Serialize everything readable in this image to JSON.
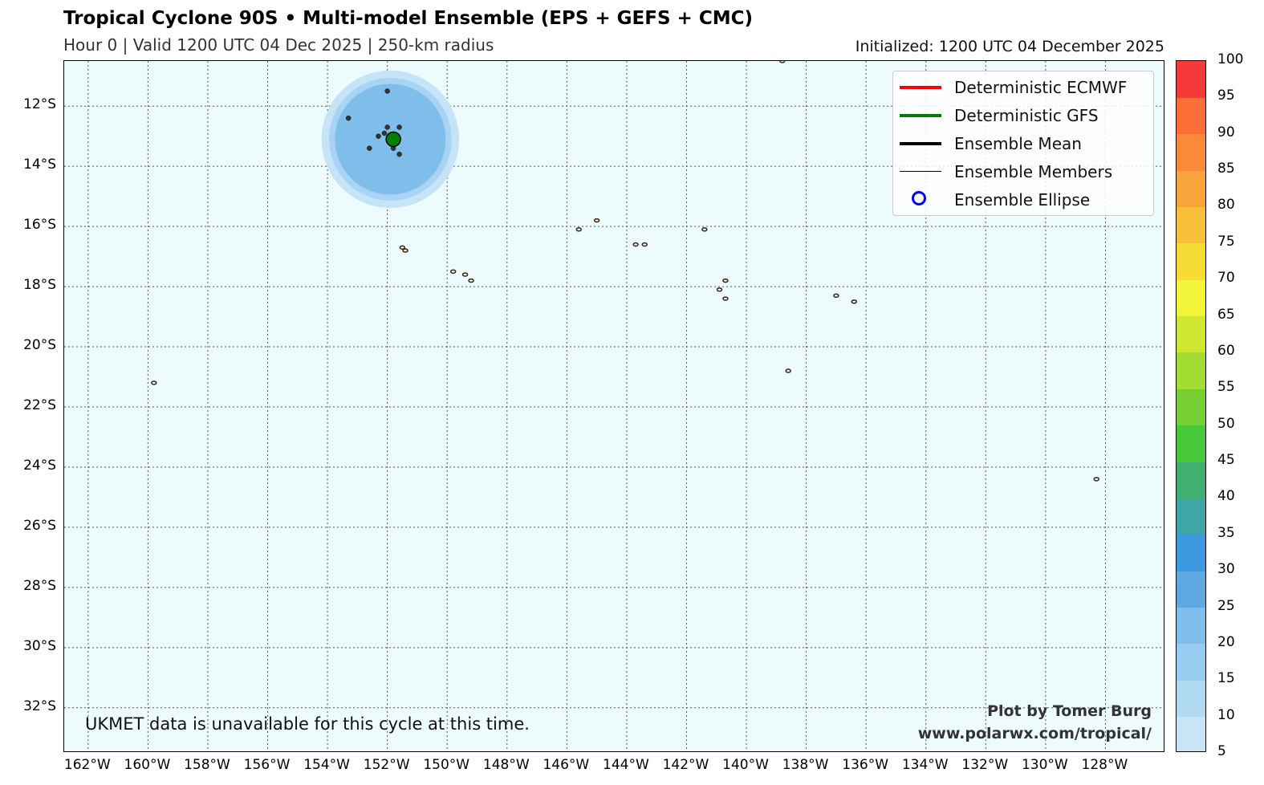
{
  "header": {
    "title": "Tropical Cyclone 90S • Multi-model Ensemble (EPS + GEFS + CMC)",
    "subtitle": "Hour 0 | Valid 1200 UTC 04 Dec 2025 | 250-km radius",
    "initialized": "Initialized: 1200 UTC 04 December 2025"
  },
  "map": {
    "lon_range": [
      -162.8,
      -126.0
    ],
    "lat_range": [
      -33.5,
      -10.5
    ],
    "lat_ticks": [
      {
        "value": -12,
        "label": "12°S"
      },
      {
        "value": -14,
        "label": "14°S"
      },
      {
        "value": -16,
        "label": "16°S"
      },
      {
        "value": -18,
        "label": "18°S"
      },
      {
        "value": -20,
        "label": "20°S"
      },
      {
        "value": -22,
        "label": "22°S"
      },
      {
        "value": -24,
        "label": "24°S"
      },
      {
        "value": -26,
        "label": "26°S"
      },
      {
        "value": -28,
        "label": "28°S"
      },
      {
        "value": -30,
        "label": "30°S"
      },
      {
        "value": -32,
        "label": "32°S"
      }
    ],
    "lon_ticks": [
      {
        "value": -162,
        "label": "162°W"
      },
      {
        "value": -160,
        "label": "160°W"
      },
      {
        "value": -158,
        "label": "158°W"
      },
      {
        "value": -156,
        "label": "156°W"
      },
      {
        "value": -154,
        "label": "154°W"
      },
      {
        "value": -152,
        "label": "152°W"
      },
      {
        "value": -150,
        "label": "150°W"
      },
      {
        "value": -148,
        "label": "148°W"
      },
      {
        "value": -146,
        "label": "146°W"
      },
      {
        "value": -144,
        "label": "144°W"
      },
      {
        "value": -142,
        "label": "142°W"
      },
      {
        "value": -140,
        "label": "140°W"
      },
      {
        "value": -138,
        "label": "138°W"
      },
      {
        "value": -136,
        "label": "136°W"
      },
      {
        "value": -134,
        "label": "134°W"
      },
      {
        "value": -132,
        "label": "132°W"
      },
      {
        "value": -130,
        "label": "130°W"
      },
      {
        "value": -128,
        "label": "128°W"
      }
    ],
    "colors": {
      "ocean": "#eefbfc",
      "grid": "#555555",
      "coast": "#3a2510",
      "member_point": "#333333",
      "gfs": "#008000",
      "prob_outer": "#c6e4f7",
      "prob_mid": "#a8d3f2",
      "prob_inner": "#7fbdea"
    },
    "probability": {
      "center": {
        "lon": -151.9,
        "lat": -13.1
      },
      "rings": [
        {
          "radius_deg": 2.3,
          "percent": 10
        },
        {
          "radius_deg": 2.05,
          "percent": 15
        },
        {
          "radius_deg": 1.85,
          "percent": 20
        }
      ]
    },
    "ensemble_members": [
      {
        "lon": -153.3,
        "lat": -12.4
      },
      {
        "lon": -152.0,
        "lat": -12.7
      },
      {
        "lon": -151.6,
        "lat": -12.7
      },
      {
        "lon": -152.3,
        "lat": -13.0
      },
      {
        "lon": -152.1,
        "lat": -12.9
      },
      {
        "lon": -152.6,
        "lat": -13.4
      },
      {
        "lon": -151.8,
        "lat": -13.4
      },
      {
        "lon": -151.6,
        "lat": -13.6
      },
      {
        "lon": -152.0,
        "lat": -11.5
      }
    ],
    "gfs_point": {
      "lon": -151.8,
      "lat": -13.1
    },
    "islands": [
      {
        "lon": -151.5,
        "lat": -16.7
      },
      {
        "lon": -151.4,
        "lat": -16.8
      },
      {
        "lon": -149.8,
        "lat": -17.5
      },
      {
        "lon": -149.4,
        "lat": -17.6
      },
      {
        "lon": -149.2,
        "lat": -17.8
      },
      {
        "lon": -145.6,
        "lat": -16.1
      },
      {
        "lon": -145.0,
        "lat": -15.8
      },
      {
        "lon": -143.7,
        "lat": -16.6
      },
      {
        "lon": -143.4,
        "lat": -16.6
      },
      {
        "lon": -141.4,
        "lat": -16.1
      },
      {
        "lon": -140.7,
        "lat": -17.8
      },
      {
        "lon": -140.9,
        "lat": -18.1
      },
      {
        "lon": -140.7,
        "lat": -18.4
      },
      {
        "lon": -137.0,
        "lat": -18.3
      },
      {
        "lon": -136.4,
        "lat": -18.5
      },
      {
        "lon": -138.6,
        "lat": -20.8
      },
      {
        "lon": -159.8,
        "lat": -21.2
      },
      {
        "lon": -128.3,
        "lat": -24.4
      },
      {
        "lon": -138.8,
        "lat": -10.5
      }
    ]
  },
  "legend": {
    "items": [
      {
        "label": "Deterministic ECMWF",
        "color": "#ff0000",
        "style": "line-thick"
      },
      {
        "label": "Deterministic GFS",
        "color": "#008000",
        "style": "line-thick"
      },
      {
        "label": "Ensemble Mean",
        "color": "#000000",
        "style": "line-thick"
      },
      {
        "label": "Ensemble Members",
        "color": "#000000",
        "style": "line-thin"
      },
      {
        "label": "Ensemble Ellipse",
        "color": "#0000ff",
        "style": "ellipse"
      }
    ]
  },
  "annotations": {
    "note": "UKMET data is unavailable for this cycle at this time.",
    "credit_line1": "Plot by Tomer Burg",
    "credit_line2": "www.polarwx.com/tropical/"
  },
  "colorbar": {
    "min": 5,
    "max": 100,
    "labels": [
      "5",
      "10",
      "15",
      "20",
      "25",
      "30",
      "35",
      "40",
      "45",
      "50",
      "55",
      "60",
      "65",
      "70",
      "75",
      "80",
      "85",
      "90",
      "95",
      "100"
    ],
    "segments": [
      {
        "from": 5,
        "to": 10,
        "color": "#c7e5f6"
      },
      {
        "from": 10,
        "to": 15,
        "color": "#b1dbf3"
      },
      {
        "from": 15,
        "to": 20,
        "color": "#97cbef"
      },
      {
        "from": 20,
        "to": 25,
        "color": "#7fbdea"
      },
      {
        "from": 25,
        "to": 30,
        "color": "#5fa9e3"
      },
      {
        "from": 30,
        "to": 35,
        "color": "#3d9ae0"
      },
      {
        "from": 35,
        "to": 40,
        "color": "#3ea6a6"
      },
      {
        "from": 40,
        "to": 45,
        "color": "#3fb070"
      },
      {
        "from": 45,
        "to": 50,
        "color": "#47c83a"
      },
      {
        "from": 50,
        "to": 55,
        "color": "#76d034"
      },
      {
        "from": 55,
        "to": 60,
        "color": "#a3dd33"
      },
      {
        "from": 60,
        "to": 65,
        "color": "#cfe933"
      },
      {
        "from": 65,
        "to": 70,
        "color": "#f3f53a"
      },
      {
        "from": 70,
        "to": 75,
        "color": "#f6dc35"
      },
      {
        "from": 75,
        "to": 80,
        "color": "#f8c03a"
      },
      {
        "from": 80,
        "to": 85,
        "color": "#f9a43a"
      },
      {
        "from": 85,
        "to": 90,
        "color": "#fb8a38"
      },
      {
        "from": 90,
        "to": 95,
        "color": "#fc6e36"
      },
      {
        "from": 95,
        "to": 100,
        "color": "#f63a3a"
      }
    ]
  }
}
